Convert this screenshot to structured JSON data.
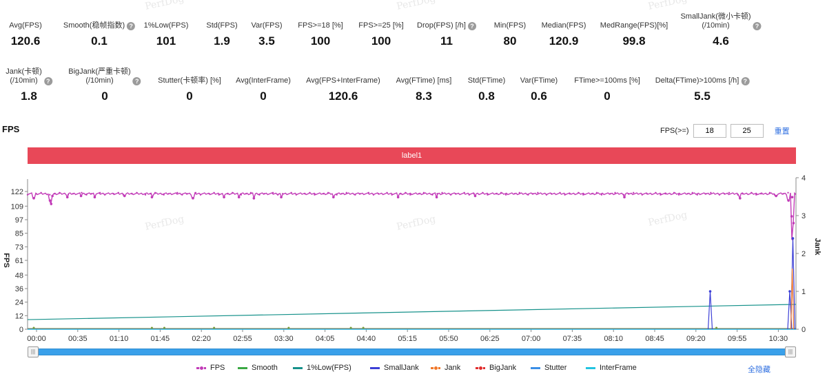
{
  "stats_row1": [
    {
      "label": "Avg(FPS)",
      "value": "120.6",
      "help": false
    },
    {
      "label": "Smooth(稳帧指数)",
      "value": "0.1",
      "help": true
    },
    {
      "label": "1%Low(FPS)",
      "value": "101",
      "help": false
    },
    {
      "label": "Std(FPS)",
      "value": "1.9",
      "help": false
    },
    {
      "label": "Var(FPS)",
      "value": "3.5",
      "help": false
    },
    {
      "label": "FPS>=18 [%]",
      "value": "100",
      "help": false
    },
    {
      "label": "FPS>=25 [%]",
      "value": "100",
      "help": false
    },
    {
      "label": "Drop(FPS) [/h]",
      "value": "11",
      "help": true
    },
    {
      "label": "Min(FPS)",
      "value": "80",
      "help": false
    },
    {
      "label": "Median(FPS)",
      "value": "120.9",
      "help": false
    },
    {
      "label": "MedRange(FPS)[%]",
      "value": "99.8",
      "help": false
    },
    {
      "label": "SmallJank(微小卡顿)\n(/10min)",
      "value": "4.6",
      "help": true
    }
  ],
  "stats_row2": [
    {
      "label": "Jank(卡顿)\n(/10min)",
      "value": "1.8",
      "help": true
    },
    {
      "label": "BigJank(严重卡顿)\n(/10min)",
      "value": "0",
      "help": true
    },
    {
      "label": "Stutter(卡顿率) [%]",
      "value": "0",
      "help": false
    },
    {
      "label": "Avg(InterFrame)",
      "value": "0",
      "help": false
    },
    {
      "label": "Avg(FPS+InterFrame)",
      "value": "120.6",
      "help": false
    },
    {
      "label": "Avg(FTime) [ms]",
      "value": "8.3",
      "help": false
    },
    {
      "label": "Std(FTime)",
      "value": "0.8",
      "help": false
    },
    {
      "label": "Var(FTime)",
      "value": "0.6",
      "help": false
    },
    {
      "label": "FTime>=100ms [%]",
      "value": "0",
      "help": false
    },
    {
      "label": "Delta(FTime)>100ms [/h]",
      "value": "5.5",
      "help": true
    }
  ],
  "watermark": "PerfDog",
  "chart_title": "FPS",
  "filter": {
    "label": "FPS(>=)",
    "value1": "18",
    "value2": "25",
    "reset": "重置"
  },
  "label_bar": "label1",
  "chart_data": {
    "type": "line",
    "x_ticks": [
      "00:00",
      "00:35",
      "01:10",
      "01:45",
      "02:20",
      "02:55",
      "03:30",
      "04:05",
      "04:40",
      "05:15",
      "05:50",
      "06:25",
      "07:00",
      "07:35",
      "08:10",
      "08:45",
      "09:20",
      "09:55",
      "10:30"
    ],
    "y_left_ticks": [
      "0",
      "12",
      "24",
      "36",
      "48",
      "61",
      "73",
      "85",
      "97",
      "109",
      "122"
    ],
    "y_left_label": "FPS",
    "y_right_ticks": [
      "0",
      "1",
      "2",
      "3",
      "4"
    ],
    "y_right_label": "Jank",
    "y_left_range": [
      0,
      122
    ],
    "y_right_range": [
      0,
      4
    ],
    "series": [
      {
        "name": "FPS",
        "color": "#c23cb8",
        "axis": "left",
        "baseline": 120,
        "dips": [
          [
            0.5,
            116
          ],
          [
            1.8,
            114
          ],
          [
            2.0,
            118
          ],
          [
            1.9,
            111
          ],
          [
            3.2,
            117
          ],
          [
            4.3,
            118
          ],
          [
            5.4,
            117
          ],
          [
            7.8,
            118
          ],
          [
            10.0,
            117
          ],
          [
            13.3,
            116
          ],
          [
            15.8,
            117
          ],
          [
            17.0,
            117
          ],
          [
            18.2,
            116
          ],
          [
            20.4,
            117
          ],
          [
            24.6,
            117
          ],
          [
            29.8,
            117
          ],
          [
            32.9,
            117
          ],
          [
            36.0,
            118
          ],
          [
            48.0,
            117
          ],
          [
            57.3,
            116
          ],
          [
            60.2,
            118
          ],
          [
            61.5,
            117
          ],
          [
            61.2,
            114
          ],
          [
            61.45,
            100
          ],
          [
            61.52,
            80
          ],
          [
            61.6,
            94
          ]
        ]
      },
      {
        "name": "Smooth",
        "color": "#3aa843",
        "axis": "left"
      },
      {
        "name": "1%Low(FPS)",
        "color": "#15918a",
        "axis": "left",
        "start": 8.5,
        "end": 22
      },
      {
        "name": "SmallJank",
        "color": "#3c3fd6",
        "axis": "right",
        "spikes": [
          [
            54.9,
            1.0
          ],
          [
            61.3,
            1.0
          ],
          [
            61.55,
            2.4
          ]
        ]
      },
      {
        "name": "Jank",
        "color": "#f0782a",
        "axis": "right",
        "spikes": [
          [
            61.5,
            1.6
          ]
        ]
      },
      {
        "name": "BigJank",
        "color": "#e02d2d",
        "axis": "right"
      },
      {
        "name": "Stutter",
        "color": "#3a8ee6",
        "axis": "right"
      },
      {
        "name": "InterFrame",
        "color": "#22c4e0",
        "axis": "right"
      }
    ],
    "x_range_minutes": [
      0,
      61.8
    ]
  },
  "hide_all": "全隐藏"
}
